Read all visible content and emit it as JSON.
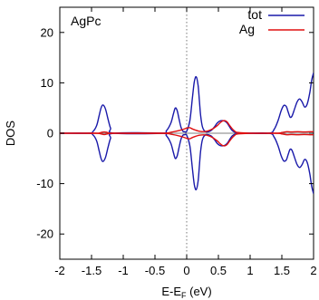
{
  "chart_data": {
    "type": "line",
    "annotation": "AgPc",
    "xlabel_parts": [
      "E-E",
      "F",
      " (eV)"
    ],
    "ylabel": "DOS",
    "xlim": [
      -2,
      2
    ],
    "ylim": [
      -25,
      25
    ],
    "xticks": [
      -2,
      -1.5,
      -1,
      -0.5,
      0,
      0.5,
      1,
      1.5,
      2
    ],
    "xtick_labels": [
      "-2",
      "-1.5",
      "-1",
      "-0.5",
      "0",
      "0.5",
      "1",
      "1.5",
      "2"
    ],
    "yticks": [
      -20,
      -10,
      0,
      10,
      20
    ],
    "ytick_labels": [
      "-20",
      "-10",
      "0",
      "10",
      "20"
    ],
    "grid": false,
    "reference_line": {
      "x": 0,
      "style": "dotted",
      "color": "#777777"
    },
    "legend_position": "top-right",
    "series": [
      {
        "name": "tot",
        "color": "#1a1aaa",
        "mirrored": true,
        "x": [
          -2.0,
          -1.55,
          -1.48,
          -1.42,
          -1.38,
          -1.35,
          -1.32,
          -1.28,
          -1.24,
          -1.2,
          -1.15,
          -0.4,
          -0.32,
          -0.25,
          -0.21,
          -0.18,
          -0.15,
          -0.12,
          -0.09,
          -0.06,
          -0.03,
          0.0,
          0.05,
          0.09,
          0.12,
          0.15,
          0.18,
          0.2,
          0.22,
          0.25,
          0.3,
          0.38,
          0.44,
          0.48,
          0.52,
          0.56,
          0.6,
          0.64,
          0.68,
          0.72,
          0.78,
          0.85,
          0.95,
          1.3,
          1.38,
          1.44,
          1.49,
          1.53,
          1.57,
          1.6,
          1.63,
          1.66,
          1.7,
          1.74,
          1.78,
          1.82,
          1.86,
          1.9,
          1.94,
          1.97,
          2.0
        ],
        "y": [
          0,
          0,
          0.3,
          1.5,
          3.5,
          5.0,
          5.6,
          4.8,
          2.8,
          1.0,
          0,
          0,
          0.5,
          2.0,
          3.8,
          5.0,
          4.5,
          2.8,
          1.2,
          0.4,
          0.3,
          0.4,
          2.5,
          7.0,
          10.2,
          11.2,
          9.5,
          6.5,
          3.5,
          1.2,
          0.3,
          0.5,
          1.3,
          2.0,
          2.4,
          2.5,
          2.4,
          2.0,
          1.2,
          0.5,
          0.1,
          0,
          0,
          0,
          0.8,
          2.5,
          4.5,
          5.5,
          5.3,
          4.2,
          3.2,
          3.4,
          4.8,
          6.2,
          6.8,
          6.2,
          5.2,
          5.8,
          8.0,
          10.5,
          12.0
        ]
      },
      {
        "name": "Ag",
        "color": "#e01010",
        "mirrored": true,
        "x": [
          -2.0,
          -1.45,
          -1.35,
          -1.3,
          -1.25,
          -1.15,
          -0.4,
          -0.25,
          -0.1,
          0.0,
          0.05,
          0.1,
          0.2,
          0.3,
          0.4,
          0.48,
          0.52,
          0.56,
          0.6,
          0.64,
          0.68,
          0.75,
          0.85,
          1.4,
          1.5,
          1.58,
          1.65,
          1.75,
          1.85,
          1.95,
          2.0
        ],
        "y": [
          0,
          0,
          0.15,
          0.25,
          0.15,
          0,
          0,
          0.2,
          0.6,
          1.0,
          1.1,
          0.8,
          0.4,
          0.35,
          0.8,
          1.5,
          2.0,
          2.4,
          2.5,
          2.2,
          1.5,
          0.5,
          0.1,
          0,
          0.15,
          0.3,
          0.25,
          0.3,
          0.25,
          0.3,
          0.3
        ]
      }
    ]
  }
}
